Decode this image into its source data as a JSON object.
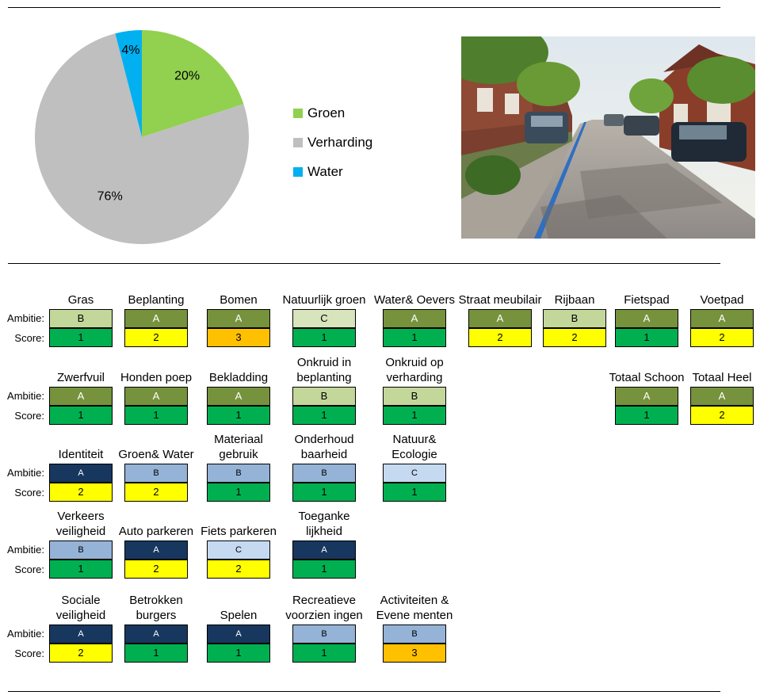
{
  "chart_data": {
    "type": "pie",
    "slices": [
      {
        "name": "Groen",
        "value": 20,
        "label": "20%",
        "color": "#92D050"
      },
      {
        "name": "Verharding",
        "value": 76,
        "label": "76%",
        "color": "#BFBFBF"
      },
      {
        "name": "Water",
        "value": 4,
        "label": "4%",
        "color": "#00B0F0"
      }
    ],
    "legend_position": "right"
  },
  "photo": {
    "subject": "street-photo"
  },
  "row_labels": {
    "ambitie": "Ambitie:",
    "score": "Score:"
  },
  "colors": {
    "green_dark": "#76923C",
    "green_light": "#C4D79B",
    "green_pale": "#D8E4BC",
    "navy": "#17375E",
    "blue_mid": "#95B3D7",
    "blue_light": "#C5D9F1",
    "score_1": "#00B050",
    "score_2": "#FFFF00",
    "score_3": "#FFC000"
  },
  "groups": [
    {
      "items": [
        {
          "title": "Gras",
          "ambitie": "B",
          "ambitie_color": "#C4D79B",
          "score": "1"
        },
        {
          "title": "Beplanting",
          "ambitie": "A",
          "ambitie_color": "#76923C",
          "score": "2"
        },
        {
          "title": "Bomen",
          "ambitie": "A",
          "ambitie_color": "#76923C",
          "score": "3"
        },
        {
          "title": "Natuurlijk groen",
          "ambitie": "C",
          "ambitie_color": "#D8E4BC",
          "score": "1"
        },
        {
          "title": "Water& Oevers",
          "ambitie": "A",
          "ambitie_color": "#76923C",
          "score": "1"
        },
        {
          "title": "Straat meubilair",
          "ambitie": "A",
          "ambitie_color": "#76923C",
          "score": "2"
        },
        {
          "title": "Rijbaan",
          "ambitie": "B",
          "ambitie_color": "#C4D79B",
          "score": "2"
        },
        {
          "title": "Fietspad",
          "ambitie": "A",
          "ambitie_color": "#76923C",
          "score": "1"
        },
        {
          "title": "Voetpad",
          "ambitie": "A",
          "ambitie_color": "#76923C",
          "score": "2"
        }
      ]
    },
    {
      "items": [
        {
          "title": "Zwerfvuil",
          "ambitie": "A",
          "ambitie_color": "#76923C",
          "score": "1"
        },
        {
          "title": "Honden poep",
          "ambitie": "A",
          "ambitie_color": "#76923C",
          "score": "1"
        },
        {
          "title": "Bekladding",
          "ambitie": "A",
          "ambitie_color": "#76923C",
          "score": "1"
        },
        {
          "title": "Onkruid in beplanting",
          "ambitie": "B",
          "ambitie_color": "#C4D79B",
          "score": "1"
        },
        {
          "title": "Onkruid op verharding",
          "ambitie": "B",
          "ambitie_color": "#C4D79B",
          "score": "1"
        },
        {
          "title": "Totaal Schoon",
          "ambitie": "A",
          "ambitie_color": "#76923C",
          "score": "1"
        },
        {
          "title": "Totaal Heel",
          "ambitie": "A",
          "ambitie_color": "#76923C",
          "score": "2"
        }
      ]
    },
    {
      "items": [
        {
          "title": "Identiteit",
          "ambitie": "A",
          "ambitie_color": "#17375E",
          "score": "2"
        },
        {
          "title": "Groen& Water",
          "ambitie": "B",
          "ambitie_color": "#95B3D7",
          "score": "2"
        },
        {
          "title": "Materiaal gebruik",
          "ambitie": "B",
          "ambitie_color": "#95B3D7",
          "score": "1"
        },
        {
          "title": "Onderhoud baarheid",
          "ambitie": "B",
          "ambitie_color": "#95B3D7",
          "score": "1"
        },
        {
          "title": "Natuur& Ecologie",
          "ambitie": "C",
          "ambitie_color": "#C5D9F1",
          "score": "1"
        }
      ]
    },
    {
      "items": [
        {
          "title": "Verkeers veiligheid",
          "ambitie": "B",
          "ambitie_color": "#95B3D7",
          "score": "1"
        },
        {
          "title": "Auto parkeren",
          "ambitie": "A",
          "ambitie_color": "#17375E",
          "score": "2"
        },
        {
          "title": "Fiets parkeren",
          "ambitie": "C",
          "ambitie_color": "#C5D9F1",
          "score": "2"
        },
        {
          "title": "Toeganke lijkheid",
          "ambitie": "A",
          "ambitie_color": "#17375E",
          "score": "1"
        }
      ]
    },
    {
      "items": [
        {
          "title": "Sociale veiligheid",
          "ambitie": "A",
          "ambitie_color": "#17375E",
          "score": "2"
        },
        {
          "title": "Betrokken burgers",
          "ambitie": "A",
          "ambitie_color": "#17375E",
          "score": "1"
        },
        {
          "title": "Spelen",
          "ambitie": "A",
          "ambitie_color": "#17375E",
          "score": "1"
        },
        {
          "title": "Recreatieve voorzien ingen",
          "ambitie": "B",
          "ambitie_color": "#95B3D7",
          "score": "1"
        },
        {
          "title": "Activiteiten & Evene menten",
          "ambitie": "B",
          "ambitie_color": "#95B3D7",
          "score": "3"
        }
      ]
    }
  ]
}
